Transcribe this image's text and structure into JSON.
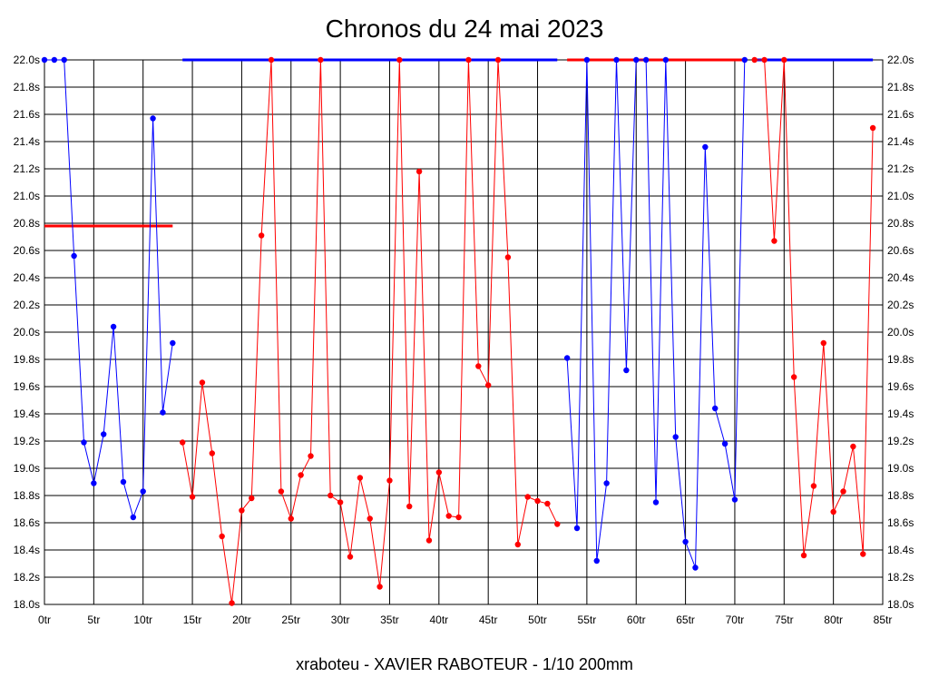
{
  "chart_data": {
    "type": "line",
    "title": "Chronos du 24 mai 2023",
    "subtitle": "xraboteu - XAVIER RABOTEUR - 1/10 200mm",
    "xlim": [
      0,
      85
    ],
    "ylim": [
      18.0,
      22.0
    ],
    "x_ticks": [
      0,
      5,
      10,
      15,
      20,
      25,
      30,
      35,
      40,
      45,
      50,
      55,
      60,
      65,
      70,
      75,
      80,
      85
    ],
    "x_tick_labels": [
      "0tr",
      "5tr",
      "10tr",
      "15tr",
      "20tr",
      "25tr",
      "30tr",
      "35tr",
      "40tr",
      "45tr",
      "50tr",
      "55tr",
      "60tr",
      "65tr",
      "70tr",
      "75tr",
      "80tr",
      "85tr"
    ],
    "y_ticks": [
      18.0,
      18.2,
      18.4,
      18.6,
      18.8,
      19.0,
      19.2,
      19.4,
      19.6,
      19.8,
      20.0,
      20.2,
      20.4,
      20.6,
      20.8,
      21.0,
      21.2,
      21.4,
      21.6,
      21.8,
      22.0
    ],
    "y_tick_labels": [
      "18.0s",
      "18.2s",
      "18.4s",
      "18.6s",
      "18.8s",
      "19.0s",
      "19.2s",
      "19.4s",
      "19.6s",
      "19.8s",
      "20.0s",
      "20.2s",
      "20.4s",
      "20.6s",
      "20.8s",
      "21.0s",
      "21.2s",
      "21.4s",
      "21.6s",
      "21.8s",
      "22.0s"
    ],
    "grid": true,
    "series": [
      {
        "color": "#0000ff",
        "x": [
          0,
          1,
          2,
          3,
          4,
          5,
          6,
          7,
          8,
          9,
          10,
          11,
          12,
          13
        ],
        "y": [
          22.0,
          22.0,
          22.0,
          20.56,
          19.19,
          18.89,
          19.25,
          20.04,
          18.9,
          18.64,
          18.83,
          21.57,
          19.41,
          19.92
        ]
      },
      {
        "color": "#ff0000",
        "x": [
          14,
          15,
          16,
          17,
          18,
          19,
          20,
          21,
          22,
          23,
          24,
          25,
          26,
          27,
          28,
          29,
          30,
          31,
          32,
          33,
          34,
          35,
          36,
          37,
          38,
          39,
          40,
          41,
          42,
          43,
          44,
          45,
          46,
          47,
          48,
          49,
          50,
          51,
          52
        ],
        "y": [
          19.19,
          18.79,
          19.63,
          19.11,
          18.5,
          18.01,
          18.69,
          18.78,
          20.71,
          22.0,
          18.83,
          18.63,
          18.95,
          19.09,
          22.0,
          18.8,
          18.75,
          18.35,
          18.93,
          18.63,
          18.13,
          18.91,
          22.0,
          18.72,
          21.18,
          18.47,
          18.97,
          18.65,
          18.64,
          22.0,
          19.75,
          19.61,
          22.0,
          20.55,
          18.44,
          18.79,
          18.76,
          18.74,
          18.59
        ]
      },
      {
        "color": "#0000ff",
        "x": [
          53,
          54,
          55,
          56,
          57,
          58,
          59,
          60,
          61,
          62,
          63,
          64,
          65,
          66,
          67,
          68,
          69,
          70,
          71
        ],
        "y": [
          19.81,
          18.56,
          22.0,
          18.32,
          18.89,
          22.0,
          19.72,
          22.0,
          22.0,
          18.75,
          22.0,
          19.23,
          18.46,
          18.27,
          21.36,
          19.44,
          19.18,
          18.77,
          22.0
        ]
      },
      {
        "color": "#ff0000",
        "x": [
          72,
          73,
          74,
          75,
          76,
          77,
          78,
          79,
          80,
          81,
          82,
          83,
          84
        ],
        "y": [
          22.0,
          22.0,
          20.67,
          22.0,
          19.67,
          18.36,
          18.87,
          19.92,
          18.68,
          18.83,
          19.16,
          18.37,
          21.5
        ]
      }
    ],
    "reference_lines": [
      {
        "color": "#ff0000",
        "y": 20.78,
        "x_start": 0,
        "x_end": 13
      },
      {
        "color": "#0000ff",
        "y": 22.0,
        "x_start": 14,
        "x_end": 52
      },
      {
        "color": "#ff0000",
        "y": 22.0,
        "x_start": 53,
        "x_end": 71
      },
      {
        "color": "#0000ff",
        "y": 22.0,
        "x_start": 72,
        "x_end": 84
      }
    ]
  }
}
